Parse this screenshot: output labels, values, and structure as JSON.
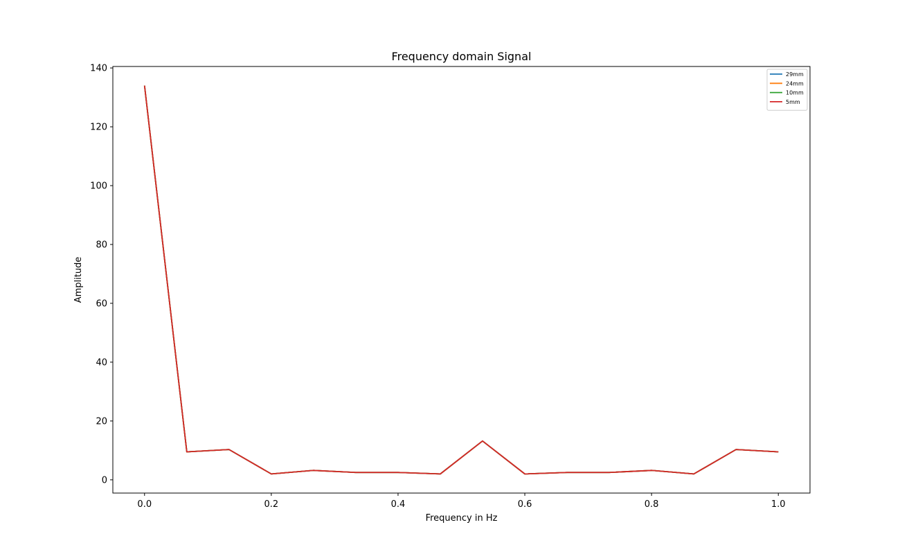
{
  "chart_data": {
    "type": "line",
    "title": "Frequency domain Signal",
    "xlabel": "Frequency in Hz",
    "ylabel": "Amplitude",
    "xlim": [
      -0.05,
      1.05
    ],
    "ylim": [
      -4.5,
      140.5
    ],
    "xticks": [
      0.0,
      0.2,
      0.4,
      0.6,
      0.8,
      1.0
    ],
    "xtick_labels": [
      "0.0",
      "0.2",
      "0.4",
      "0.6",
      "0.8",
      "1.0"
    ],
    "yticks": [
      0,
      20,
      40,
      60,
      80,
      100,
      120,
      140
    ],
    "ytick_labels": [
      "0",
      "20",
      "40",
      "60",
      "80",
      "100",
      "120",
      "140"
    ],
    "grid": false,
    "legend_position": "top-right",
    "x": [
      0.0,
      0.0667,
      0.1333,
      0.2,
      0.2667,
      0.3333,
      0.4,
      0.4667,
      0.5333,
      0.6,
      0.6667,
      0.7333,
      0.8,
      0.8667,
      0.9333,
      1.0
    ],
    "series": [
      {
        "name": "29mm",
        "color": "#1f77b4",
        "values": [
          134,
          9.5,
          10.3,
          2.0,
          3.2,
          2.5,
          2.5,
          2.0,
          13.2,
          2.0,
          2.5,
          2.5,
          3.2,
          2.0,
          10.3,
          9.5
        ]
      },
      {
        "name": "24mm",
        "color": "#ff7f0e",
        "values": [
          134,
          9.5,
          10.3,
          2.0,
          3.2,
          2.5,
          2.5,
          2.0,
          13.2,
          2.0,
          2.5,
          2.5,
          3.2,
          2.0,
          10.3,
          9.5
        ]
      },
      {
        "name": "10mm",
        "color": "#2ca02c",
        "values": [
          134,
          9.5,
          10.3,
          2.0,
          3.2,
          2.5,
          2.5,
          2.0,
          13.2,
          2.0,
          2.5,
          2.5,
          3.2,
          2.0,
          10.3,
          9.5
        ]
      },
      {
        "name": "5mm",
        "color": "#d62728",
        "values": [
          134,
          9.5,
          10.3,
          2.0,
          3.2,
          2.5,
          2.5,
          2.0,
          13.2,
          2.0,
          2.5,
          2.5,
          3.2,
          2.0,
          10.3,
          9.5
        ]
      }
    ]
  }
}
